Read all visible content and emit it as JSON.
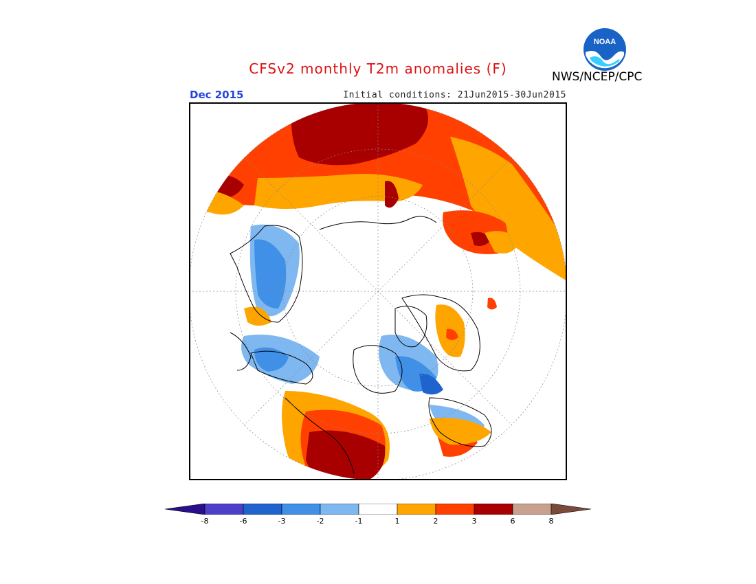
{
  "title": "CFSv2 monthly T2m anomalies (F)",
  "agency": "NWS/NCEP/CPC",
  "logo_text": "NOAA",
  "valid_month": "Dec 2015",
  "initial_conditions": "Initial conditions: 21Jun2015-30Jun2015",
  "colors": {
    "title": "#dd1111",
    "valid_month": "#2244dd",
    "ocean": "#ffffff",
    "coast": "#000000"
  },
  "legend": {
    "tick_labels": [
      "-8",
      "-6",
      "-3",
      "-2",
      "-1",
      "1",
      "2",
      "3",
      "6",
      "8"
    ],
    "bins": [
      {
        "label": "< -8",
        "color": "#2a0f8c"
      },
      {
        "label": "-8 to -6",
        "color": "#4e3fc9"
      },
      {
        "label": "-6 to -3",
        "color": "#1f63cf"
      },
      {
        "label": "-3 to -2",
        "color": "#3f90e6"
      },
      {
        "label": "-2 to -1",
        "color": "#7fb8f0"
      },
      {
        "label": "-1 to 1",
        "color": "#ffffff"
      },
      {
        "label": "1 to 2",
        "color": "#ffa500"
      },
      {
        "label": "2 to 3",
        "color": "#ff4000"
      },
      {
        "label": "3 to 6",
        "color": "#a80000"
      },
      {
        "label": "6 to 8",
        "color": "#c9a08f"
      },
      {
        "label": "> 8",
        "color": "#7a4a3a"
      }
    ]
  }
}
